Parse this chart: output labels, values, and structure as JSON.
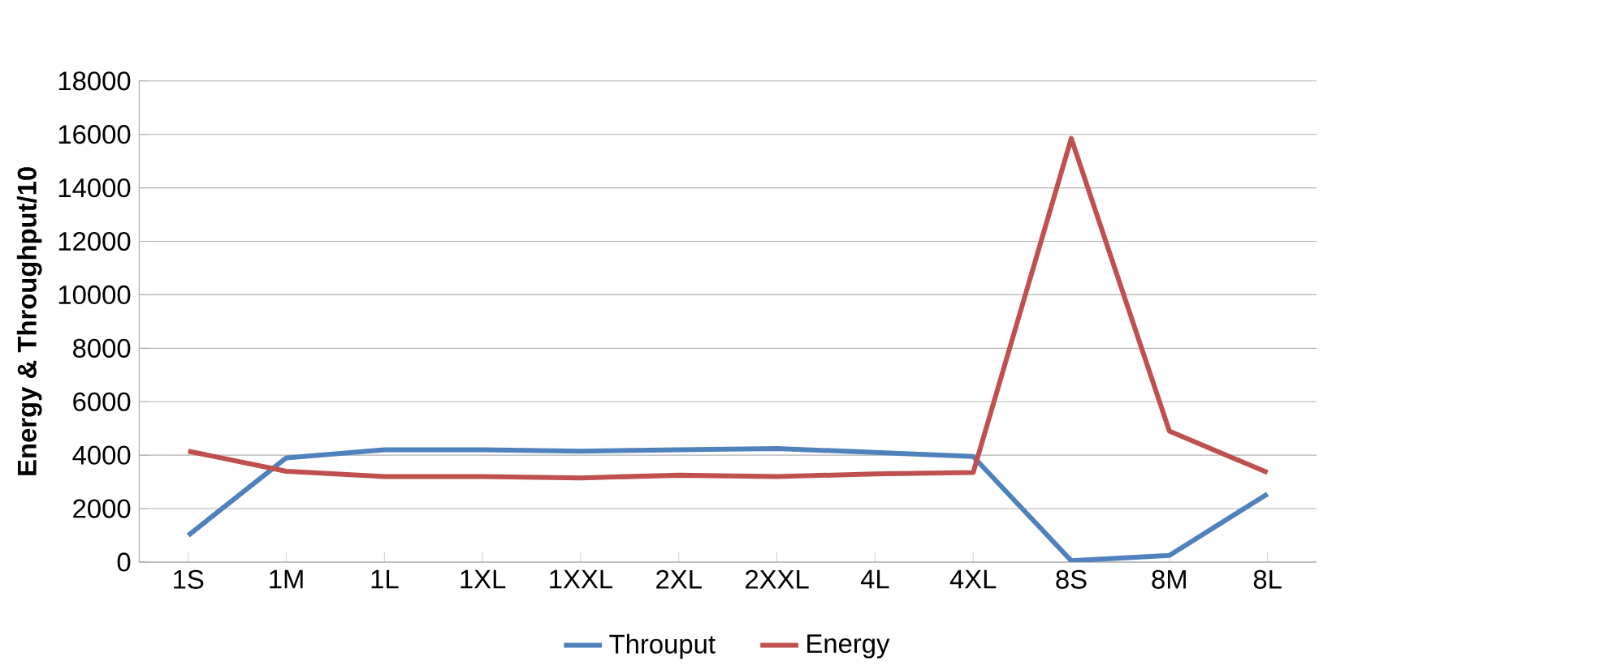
{
  "chart_data": {
    "type": "line",
    "ylabel": "Energy & Throughput/10",
    "categories": [
      "1S",
      "1M",
      "1L",
      "1XL",
      "1XXL",
      "2XL",
      "2XXL",
      "4L",
      "4XL",
      "8S",
      "8M",
      "8L"
    ],
    "series": [
      {
        "name": "Throuput",
        "color": "#4f81bd",
        "values": [
          1000,
          3900,
          4200,
          4200,
          4150,
          4200,
          4250,
          4100,
          3950,
          50,
          250,
          2550
        ]
      },
      {
        "name": "Energy",
        "color": "#c0504d",
        "values": [
          4150,
          3400,
          3200,
          3200,
          3150,
          3250,
          3200,
          3300,
          3350,
          15850,
          4900,
          3350
        ]
      }
    ],
    "ylim": [
      0,
      18000
    ],
    "yticks": [
      0,
      2000,
      4000,
      6000,
      8000,
      10000,
      12000,
      14000,
      16000,
      18000
    ],
    "grid": "y",
    "legend": "bottom",
    "marker": "none",
    "line_style": "solid"
  }
}
